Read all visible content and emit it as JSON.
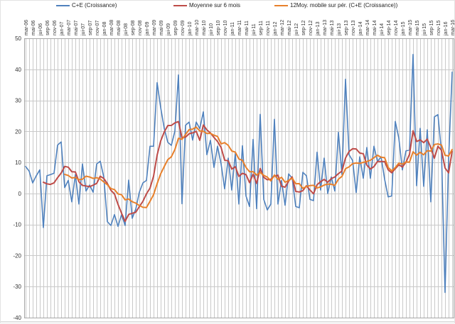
{
  "chart_data": {
    "type": "line",
    "title": "",
    "legend_position": "top",
    "grid": "both",
    "x_axis": {
      "label": "",
      "n_points": 121,
      "months_per_tick_label": 2,
      "first_point": "mar-06",
      "last_point": "mar-16",
      "tick_labels": [
        "mar-06",
        "mai-06",
        "jui-06",
        "sep-06",
        "nov-06",
        "jan-07",
        "mar-07",
        "mai-07",
        "jui-07",
        "sep-07",
        "nov-07",
        "jan-08",
        "mar-08",
        "mai-08",
        "jui-08",
        "sep-08",
        "nov-08",
        "jan-09",
        "mar-09",
        "mai-09",
        "jui-09",
        "sep-09",
        "nov-09",
        "jan-10",
        "mar-10",
        "mai-10",
        "jui-10",
        "sep-10",
        "nov-10",
        "jan-11",
        "mar-11",
        "mai-11",
        "jui-11",
        "sep-11",
        "nov-11",
        "jan-12",
        "mar-12",
        "mai-12",
        "jui-12",
        "sep-12",
        "nov-12",
        "jan-13",
        "mar-13",
        "mai-13",
        "jui-13",
        "sep-13",
        "nov-13",
        "jan-14",
        "mar-14",
        "mai-14",
        "jui-14",
        "sep-14",
        "nov-14",
        "jan-15",
        "mar-15",
        "mai-15",
        "jui-15",
        "sep-15",
        "nov-15",
        "jan-16",
        "mar-16"
      ]
    },
    "y_axis": {
      "label": "",
      "min": -40,
      "max": 50,
      "step": 10,
      "ticks": [
        50,
        40,
        30,
        20,
        10,
        0,
        -10,
        -20,
        -30,
        -40
      ]
    },
    "series": [
      {
        "name": "C+E (Croissance)",
        "color": "#4F81BD",
        "values": [
          8.7,
          7.2,
          3.4,
          5.7,
          7.6,
          -11,
          5.7,
          6.1,
          6.5,
          15.6,
          16.6,
          1.9,
          4.2,
          -2.7,
          6.1,
          -3.4,
          9.5,
          0.8,
          2.7,
          0.4,
          9.5,
          10.4,
          5.3,
          -9.1,
          -10.3,
          -6.8,
          -10.6,
          -6.8,
          -10.3,
          4.3,
          -8,
          -5,
          0.4,
          3.4,
          4.2,
          15.2,
          15.2,
          35.7,
          27.7,
          21,
          16.5,
          15.5,
          20.1,
          38.2,
          -3.3,
          22,
          23,
          17.2,
          23,
          20.9,
          26.3,
          12.5,
          17.1,
          8.4,
          15.2,
          9.5,
          1.5,
          11.4,
          1.1,
          12.9,
          -3.4,
          15.4,
          -0.8,
          -4.2,
          17.4,
          -4.9,
          25.5,
          -1.9,
          -5.3,
          -3.4,
          23.9,
          -3.4,
          4.2,
          -3.8,
          6.3,
          4.9,
          -4.2,
          -4.6,
          6.8,
          5.7,
          -1.9,
          -2.3,
          13.3,
          1.1,
          11.4,
          0,
          5.3,
          0.8,
          19.7,
          6.1,
          36.8,
          12.5,
          10.6,
          0.3,
          11.8,
          4.9,
          14.8,
          4.9,
          15.2,
          10.3,
          11.8,
          4.6,
          -1.1,
          -0.8,
          23.2,
          17.8,
          7.6,
          13.7,
          14,
          44.8,
          2.5,
          21,
          2.3,
          20.5,
          -2.7,
          24.7,
          25.4,
          13.3,
          -31.9,
          11,
          39.1
        ]
      },
      {
        "name": "Moyenne sur 6 mois",
        "color": "#BE4B48",
        "derived_from": "C+E (Croissance)",
        "moving_average_window": 6,
        "values_computed_at_render": true
      },
      {
        "name": "12Moy. mobile sur pér. (C+E (Croissance))",
        "color": "#E8802B",
        "derived_from": "C+E (Croissance)",
        "moving_average_window": 12,
        "values_computed_at_render": true
      }
    ],
    "colors": {
      "gridline": "#c9c9c9",
      "plot_border": "#a6a6a6",
      "axis_text": "#333333",
      "legend_text": "#1f1f1f"
    }
  }
}
